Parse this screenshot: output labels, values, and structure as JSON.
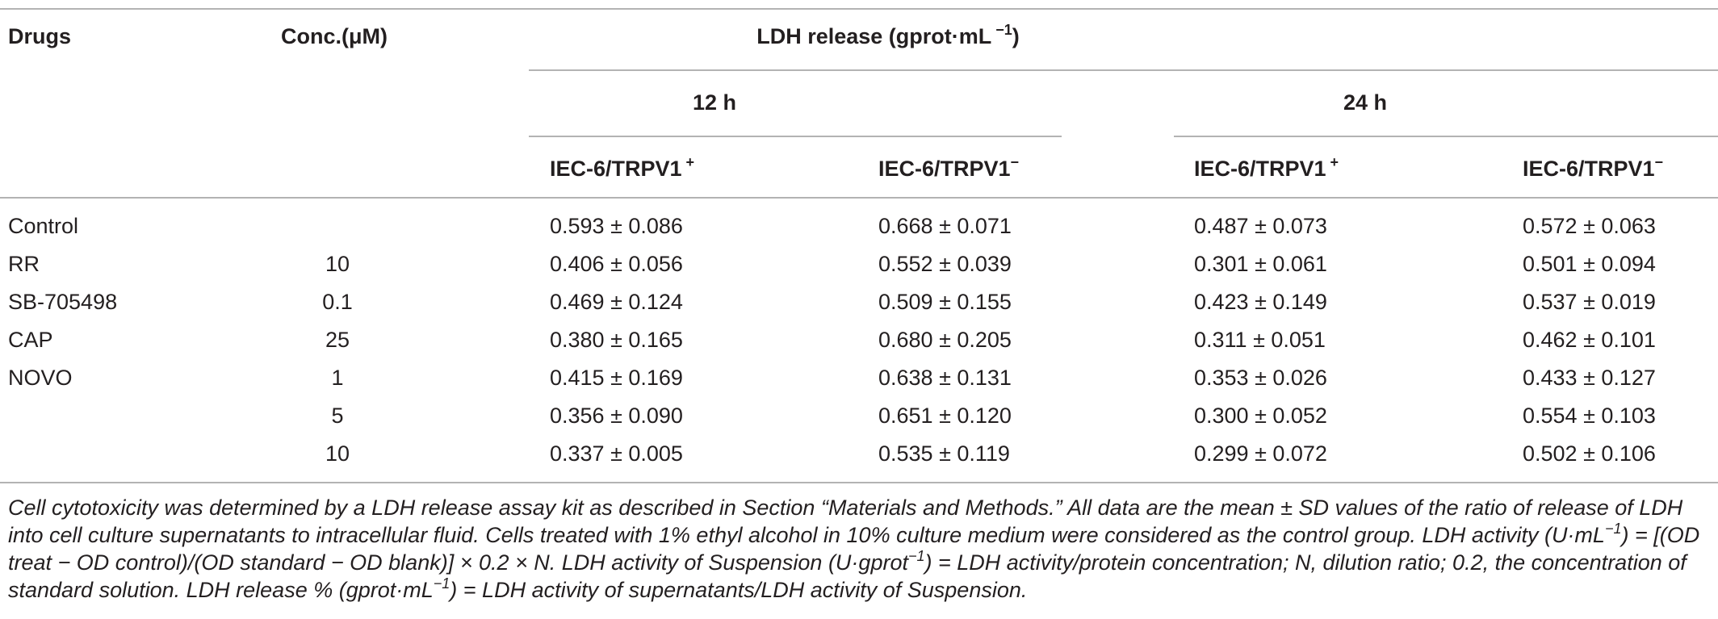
{
  "headers": {
    "drugs": "Drugs",
    "conc": "Conc.(μM)",
    "ldh_main": "LDH release (gprot·mL",
    "ldh_sup": " −1",
    "ldh_close": ")",
    "period_12": "12 h",
    "period_24": "24 h",
    "iec_pos": "IEC-6/TRPV1",
    "iec_pos_sup": " +",
    "iec_neg": "IEC-6/TRPV1",
    "iec_neg_sup": "−"
  },
  "rows": [
    {
      "drug": "Control",
      "conc": "",
      "v12p": "0.593 ± 0.086",
      "v12n": "0.668 ± 0.071",
      "v24p": "0.487 ± 0.073",
      "v24n": "0.572 ± 0.063"
    },
    {
      "drug": "RR",
      "conc": "10",
      "v12p": "0.406 ± 0.056",
      "v12n": "0.552 ± 0.039",
      "v24p": "0.301 ± 0.061",
      "v24n": "0.501 ± 0.094"
    },
    {
      "drug": "SB-705498",
      "conc": "0.1",
      "v12p": "0.469 ± 0.124",
      "v12n": "0.509 ± 0.155",
      "v24p": "0.423 ± 0.149",
      "v24n": "0.537 ± 0.019"
    },
    {
      "drug": "CAP",
      "conc": "25",
      "v12p": "0.380 ± 0.165",
      "v12n": "0.680 ± 0.205",
      "v24p": "0.311 ± 0.051",
      "v24n": "0.462 ± 0.101"
    },
    {
      "drug": "NOVO",
      "conc": "1",
      "v12p": "0.415 ± 0.169",
      "v12n": "0.638 ± 0.131",
      "v24p": "0.353 ± 0.026",
      "v24n": "0.433 ± 0.127"
    },
    {
      "drug": "",
      "conc": "5",
      "v12p": "0.356 ± 0.090",
      "v12n": "0.651 ± 0.120",
      "v24p": "0.300 ± 0.052",
      "v24n": "0.554 ± 0.103"
    },
    {
      "drug": "",
      "conc": "10",
      "v12p": "0.337 ± 0.005",
      "v12n": "0.535 ± 0.119",
      "v24p": "0.299 ± 0.072",
      "v24n": "0.502 ± 0.106"
    }
  ],
  "footnote": {
    "s1": "Cell cytotoxicity was determined by a LDH release assay kit as described in Section “Materials and Methods.” All data are the mean ± SD values of the ratio of release of LDH into cell culture supernatants to intracellular fluid. Cells treated with 1% ethyl alcohol in 10% culture medium were considered as the control group. LDH activity (U·mL",
    "sup1": "−1",
    "s2": ") = [(OD treat − OD control)/(OD standard − OD blank)] × 0.2 × N. LDH activity of Suspension (U·gprot",
    "sup2": "−1",
    "s3": ") = LDH activity/protein concentration; N, dilution ratio; 0.2, the concentration of standard solution. LDH release % (gprot·mL",
    "sup3": "−1",
    "s4": ") = LDH activity of supernatants/LDH activity of Suspension."
  }
}
